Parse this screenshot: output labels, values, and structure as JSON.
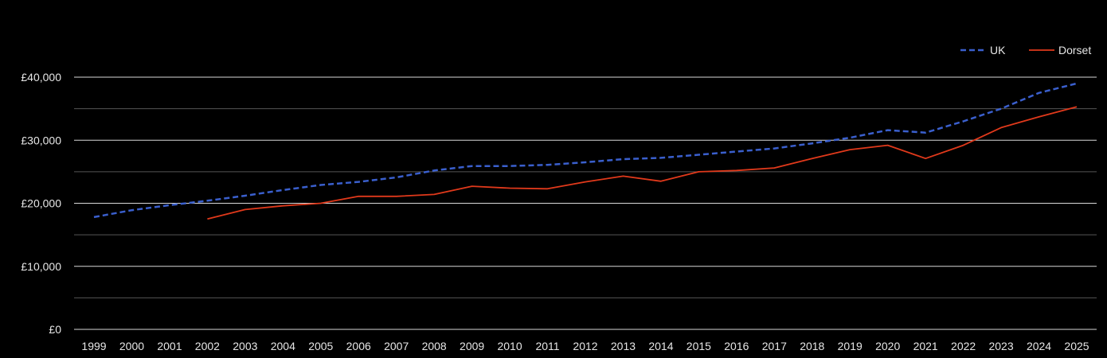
{
  "chart_data": {
    "type": "line",
    "title": "",
    "xlabel": "",
    "ylabel": "",
    "x": [
      "1999",
      "2000",
      "2001",
      "2002",
      "2003",
      "2004",
      "2005",
      "2006",
      "2007",
      "2008",
      "2009",
      "2010",
      "2011",
      "2012",
      "2013",
      "2014",
      "2015",
      "2016",
      "2017",
      "2018",
      "2019",
      "2020",
      "2021",
      "2022",
      "2023",
      "2024",
      "2025"
    ],
    "ylim": [
      0,
      40000
    ],
    "yticks": [
      0,
      10000,
      20000,
      30000,
      40000
    ],
    "ytick_labels": [
      "£0",
      "£10,000",
      "£20,000",
      "£30,000",
      "£40,000"
    ],
    "grid": true,
    "legend_position": "top-right",
    "series": [
      {
        "name": "UK",
        "color": "#3a5fcd",
        "style": "dashed",
        "values": [
          17800,
          18900,
          19700,
          20400,
          21200,
          22100,
          22900,
          23400,
          24100,
          25200,
          25900,
          25900,
          26100,
          26500,
          27000,
          27200,
          27700,
          28200,
          28700,
          29500,
          30400,
          31600,
          31200,
          33000,
          35000,
          37500,
          39000
        ]
      },
      {
        "name": "Dorset",
        "color": "#e0391b",
        "style": "solid",
        "values": [
          null,
          null,
          null,
          17500,
          19000,
          19600,
          20000,
          21100,
          21100,
          21400,
          22700,
          22400,
          22300,
          23400,
          24300,
          23500,
          25000,
          25200,
          25600,
          27100,
          28500,
          29200,
          27100,
          29200,
          32000,
          33700,
          35300
        ]
      }
    ]
  }
}
